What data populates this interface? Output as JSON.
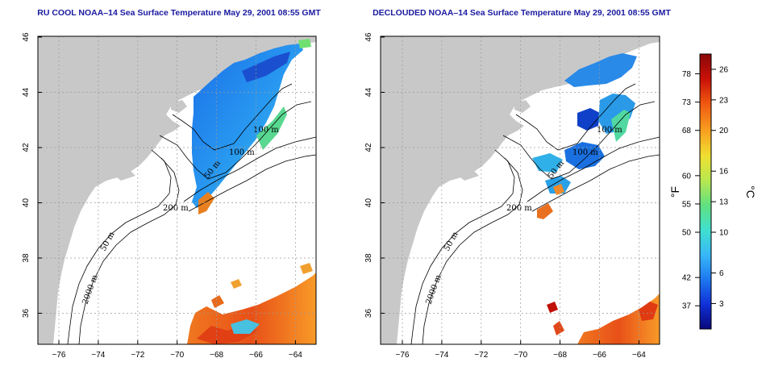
{
  "left_panel": {
    "title": "RU COOL NOAA–14 Sea Surface Temperature May 29, 2001 08:55 GMT"
  },
  "right_panel": {
    "title": "DECLOUDED NOAA–14 Sea Surface Temperature May 29, 2001 08:55 GMT"
  },
  "axes": {
    "lat_ticks": [
      "46",
      "44",
      "42",
      "40",
      "38",
      "36"
    ],
    "lon_ticks": [
      "−76",
      "−74",
      "−72",
      "−70",
      "−68",
      "−66",
      "−64"
    ]
  },
  "contour_labels": [
    "100 m",
    "100 m",
    "50 m",
    "200 m",
    "50 m",
    "2000 m"
  ],
  "colorbar": {
    "f_label": "°F",
    "c_label": "°C",
    "f_ticks": [
      "78",
      "73",
      "68",
      "60",
      "55",
      "50",
      "42",
      "37"
    ],
    "c_ticks": [
      "26",
      "23",
      "20",
      "16",
      "13",
      "10",
      "6",
      "3"
    ],
    "f_values": [
      78,
      73,
      68,
      60,
      55,
      50,
      42,
      37
    ],
    "c_values": [
      26,
      23,
      20,
      16,
      13,
      10,
      6,
      3
    ],
    "colors": [
      "#08087a",
      "#1030d8",
      "#1e78f0",
      "#38b8f8",
      "#40e0d0",
      "#60e080",
      "#b8e850",
      "#f0e030",
      "#f8a020",
      "#f05810",
      "#c81008",
      "#8a0808"
    ]
  },
  "colors": {
    "land": "#c8c8c8",
    "ocean": "#ffffff",
    "title": "#1a1aa0",
    "grid": "#9a9a9a"
  }
}
